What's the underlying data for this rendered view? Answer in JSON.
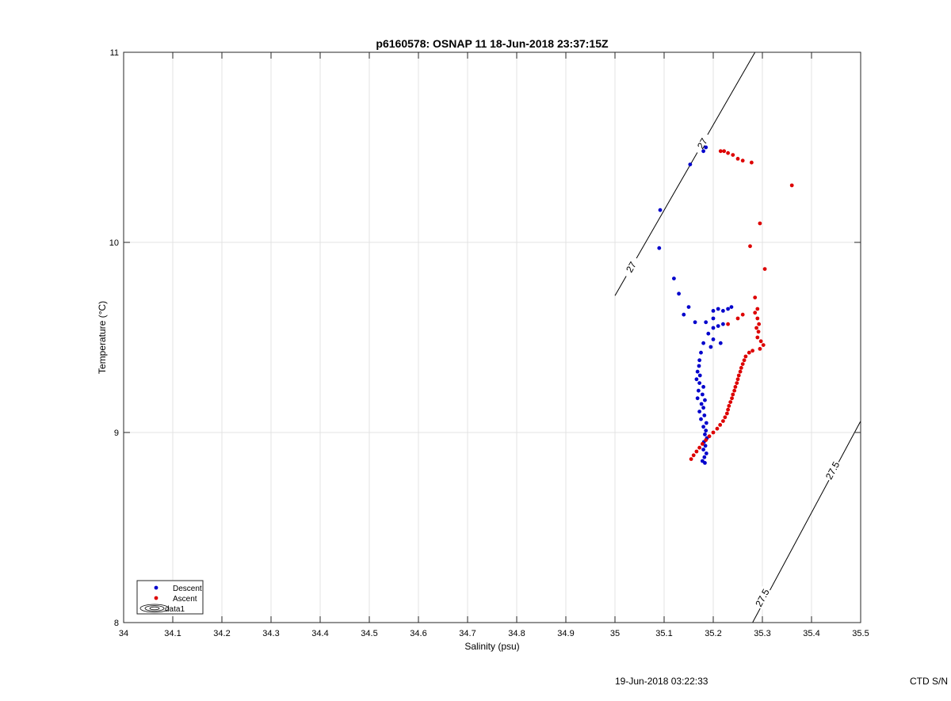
{
  "chart_data": {
    "type": "scatter",
    "title": "p6160578: OSNAP 11 18-Jun-2018 23:37:15Z",
    "xlabel": "Salinity (psu)",
    "ylabel": "Temperature (°C)",
    "xlim": [
      34,
      35.5
    ],
    "ylim": [
      8,
      11
    ],
    "xticks": [
      34,
      34.1,
      34.2,
      34.3,
      34.4,
      34.5,
      34.6,
      34.7,
      34.8,
      34.9,
      35,
      35.1,
      35.2,
      35.3,
      35.4,
      35.5
    ],
    "xtick_labels": [
      "34",
      "34.1",
      "34.2",
      "34.3",
      "34.4",
      "34.5",
      "34.6",
      "34.7",
      "34.8",
      "34.9",
      "35",
      "35.1",
      "35.2",
      "35.3",
      "35.4",
      "35.5"
    ],
    "yticks": [
      8,
      9,
      10,
      11
    ],
    "ytick_labels": [
      "8",
      "9",
      "10",
      "11"
    ],
    "grid": true,
    "legend_position": "bottom-left",
    "legend": [
      {
        "label": "Descent",
        "color": "#0000cc",
        "marker": "dot"
      },
      {
        "label": "Ascent",
        "color": "#dd0000",
        "marker": "dot"
      },
      {
        "label": "data1",
        "color": "#000000",
        "marker": "contour"
      }
    ],
    "series": [
      {
        "name": "Descent",
        "color": "#0000cc",
        "points": [
          [
            35.185,
            10.5
          ],
          [
            35.18,
            10.48
          ],
          [
            35.153,
            10.41
          ],
          [
            35.092,
            10.17
          ],
          [
            35.09,
            9.97
          ],
          [
            35.12,
            9.81
          ],
          [
            35.13,
            9.73
          ],
          [
            35.15,
            9.66
          ],
          [
            35.14,
            9.62
          ],
          [
            35.163,
            9.58
          ],
          [
            35.185,
            9.58
          ],
          [
            35.2,
            9.6
          ],
          [
            35.2,
            9.64
          ],
          [
            35.21,
            9.65
          ],
          [
            35.22,
            9.64
          ],
          [
            35.23,
            9.65
          ],
          [
            35.237,
            9.66
          ],
          [
            35.2,
            9.55
          ],
          [
            35.21,
            9.56
          ],
          [
            35.22,
            9.57
          ],
          [
            35.19,
            9.52
          ],
          [
            35.2,
            9.49
          ],
          [
            35.215,
            9.47
          ],
          [
            35.18,
            9.47
          ],
          [
            35.195,
            9.45
          ],
          [
            35.175,
            9.42
          ],
          [
            35.172,
            9.38
          ],
          [
            35.171,
            9.35
          ],
          [
            35.168,
            9.32
          ],
          [
            35.173,
            9.3
          ],
          [
            35.166,
            9.28
          ],
          [
            35.172,
            9.26
          ],
          [
            35.18,
            9.24
          ],
          [
            35.17,
            9.22
          ],
          [
            35.178,
            9.2
          ],
          [
            35.168,
            9.18
          ],
          [
            35.183,
            9.17
          ],
          [
            35.176,
            9.15
          ],
          [
            35.18,
            9.13
          ],
          [
            35.172,
            9.11
          ],
          [
            35.182,
            9.09
          ],
          [
            35.175,
            9.07
          ],
          [
            35.186,
            9.05
          ],
          [
            35.18,
            9.03
          ],
          [
            35.185,
            9.01
          ],
          [
            35.183,
            8.99
          ],
          [
            35.187,
            8.97
          ],
          [
            35.181,
            8.95
          ],
          [
            35.184,
            8.93
          ],
          [
            35.18,
            8.91
          ],
          [
            35.186,
            8.89
          ],
          [
            35.182,
            8.87
          ],
          [
            35.178,
            8.85
          ],
          [
            35.183,
            8.84
          ]
        ]
      },
      {
        "name": "Ascent",
        "color": "#dd0000",
        "points": [
          [
            35.215,
            10.48
          ],
          [
            35.222,
            10.48
          ],
          [
            35.23,
            10.47
          ],
          [
            35.24,
            10.46
          ],
          [
            35.25,
            10.44
          ],
          [
            35.26,
            10.43
          ],
          [
            35.278,
            10.42
          ],
          [
            35.36,
            10.3
          ],
          [
            35.295,
            10.1
          ],
          [
            35.275,
            9.98
          ],
          [
            35.305,
            9.86
          ],
          [
            35.285,
            9.71
          ],
          [
            35.29,
            9.65
          ],
          [
            35.285,
            9.63
          ],
          [
            35.29,
            9.6
          ],
          [
            35.293,
            9.57
          ],
          [
            35.288,
            9.55
          ],
          [
            35.292,
            9.53
          ],
          [
            35.29,
            9.5
          ],
          [
            35.297,
            9.48
          ],
          [
            35.302,
            9.46
          ],
          [
            35.295,
            9.44
          ],
          [
            35.28,
            9.43
          ],
          [
            35.273,
            9.42
          ],
          [
            35.266,
            9.4
          ],
          [
            35.263,
            9.38
          ],
          [
            35.26,
            9.36
          ],
          [
            35.257,
            9.34
          ],
          [
            35.255,
            9.32
          ],
          [
            35.252,
            9.3
          ],
          [
            35.25,
            9.28
          ],
          [
            35.248,
            9.26
          ],
          [
            35.245,
            9.24
          ],
          [
            35.243,
            9.22
          ],
          [
            35.24,
            9.2
          ],
          [
            35.238,
            9.18
          ],
          [
            35.235,
            9.16
          ],
          [
            35.232,
            9.14
          ],
          [
            35.23,
            9.12
          ],
          [
            35.228,
            9.1
          ],
          [
            35.224,
            9.08
          ],
          [
            35.22,
            9.06
          ],
          [
            35.214,
            9.04
          ],
          [
            35.208,
            9.02
          ],
          [
            35.2,
            9.0
          ],
          [
            35.192,
            8.98
          ],
          [
            35.185,
            8.96
          ],
          [
            35.178,
            8.94
          ],
          [
            35.172,
            8.92
          ],
          [
            35.166,
            8.9
          ],
          [
            35.16,
            8.88
          ],
          [
            35.155,
            8.86
          ],
          [
            35.25,
            9.6
          ],
          [
            35.26,
            9.62
          ],
          [
            35.23,
            9.57
          ]
        ]
      }
    ],
    "isopycnals": [
      {
        "label": "27",
        "p1": [
          35.0,
          9.72
        ],
        "p2": [
          35.285,
          11.0
        ],
        "label_at": [
          [
            35.033,
            9.87
          ],
          [
            35.178,
            10.52
          ]
        ]
      },
      {
        "label": "27.5",
        "p1": [
          35.28,
          8.0
        ],
        "p2": [
          35.5,
          9.06
        ],
        "label_at": [
          [
            35.3,
            8.13
          ],
          [
            35.443,
            8.8
          ]
        ]
      }
    ]
  },
  "footer": {
    "timestamp": "19-Jun-2018 03:22:33",
    "ctd": "CTD S/N"
  }
}
